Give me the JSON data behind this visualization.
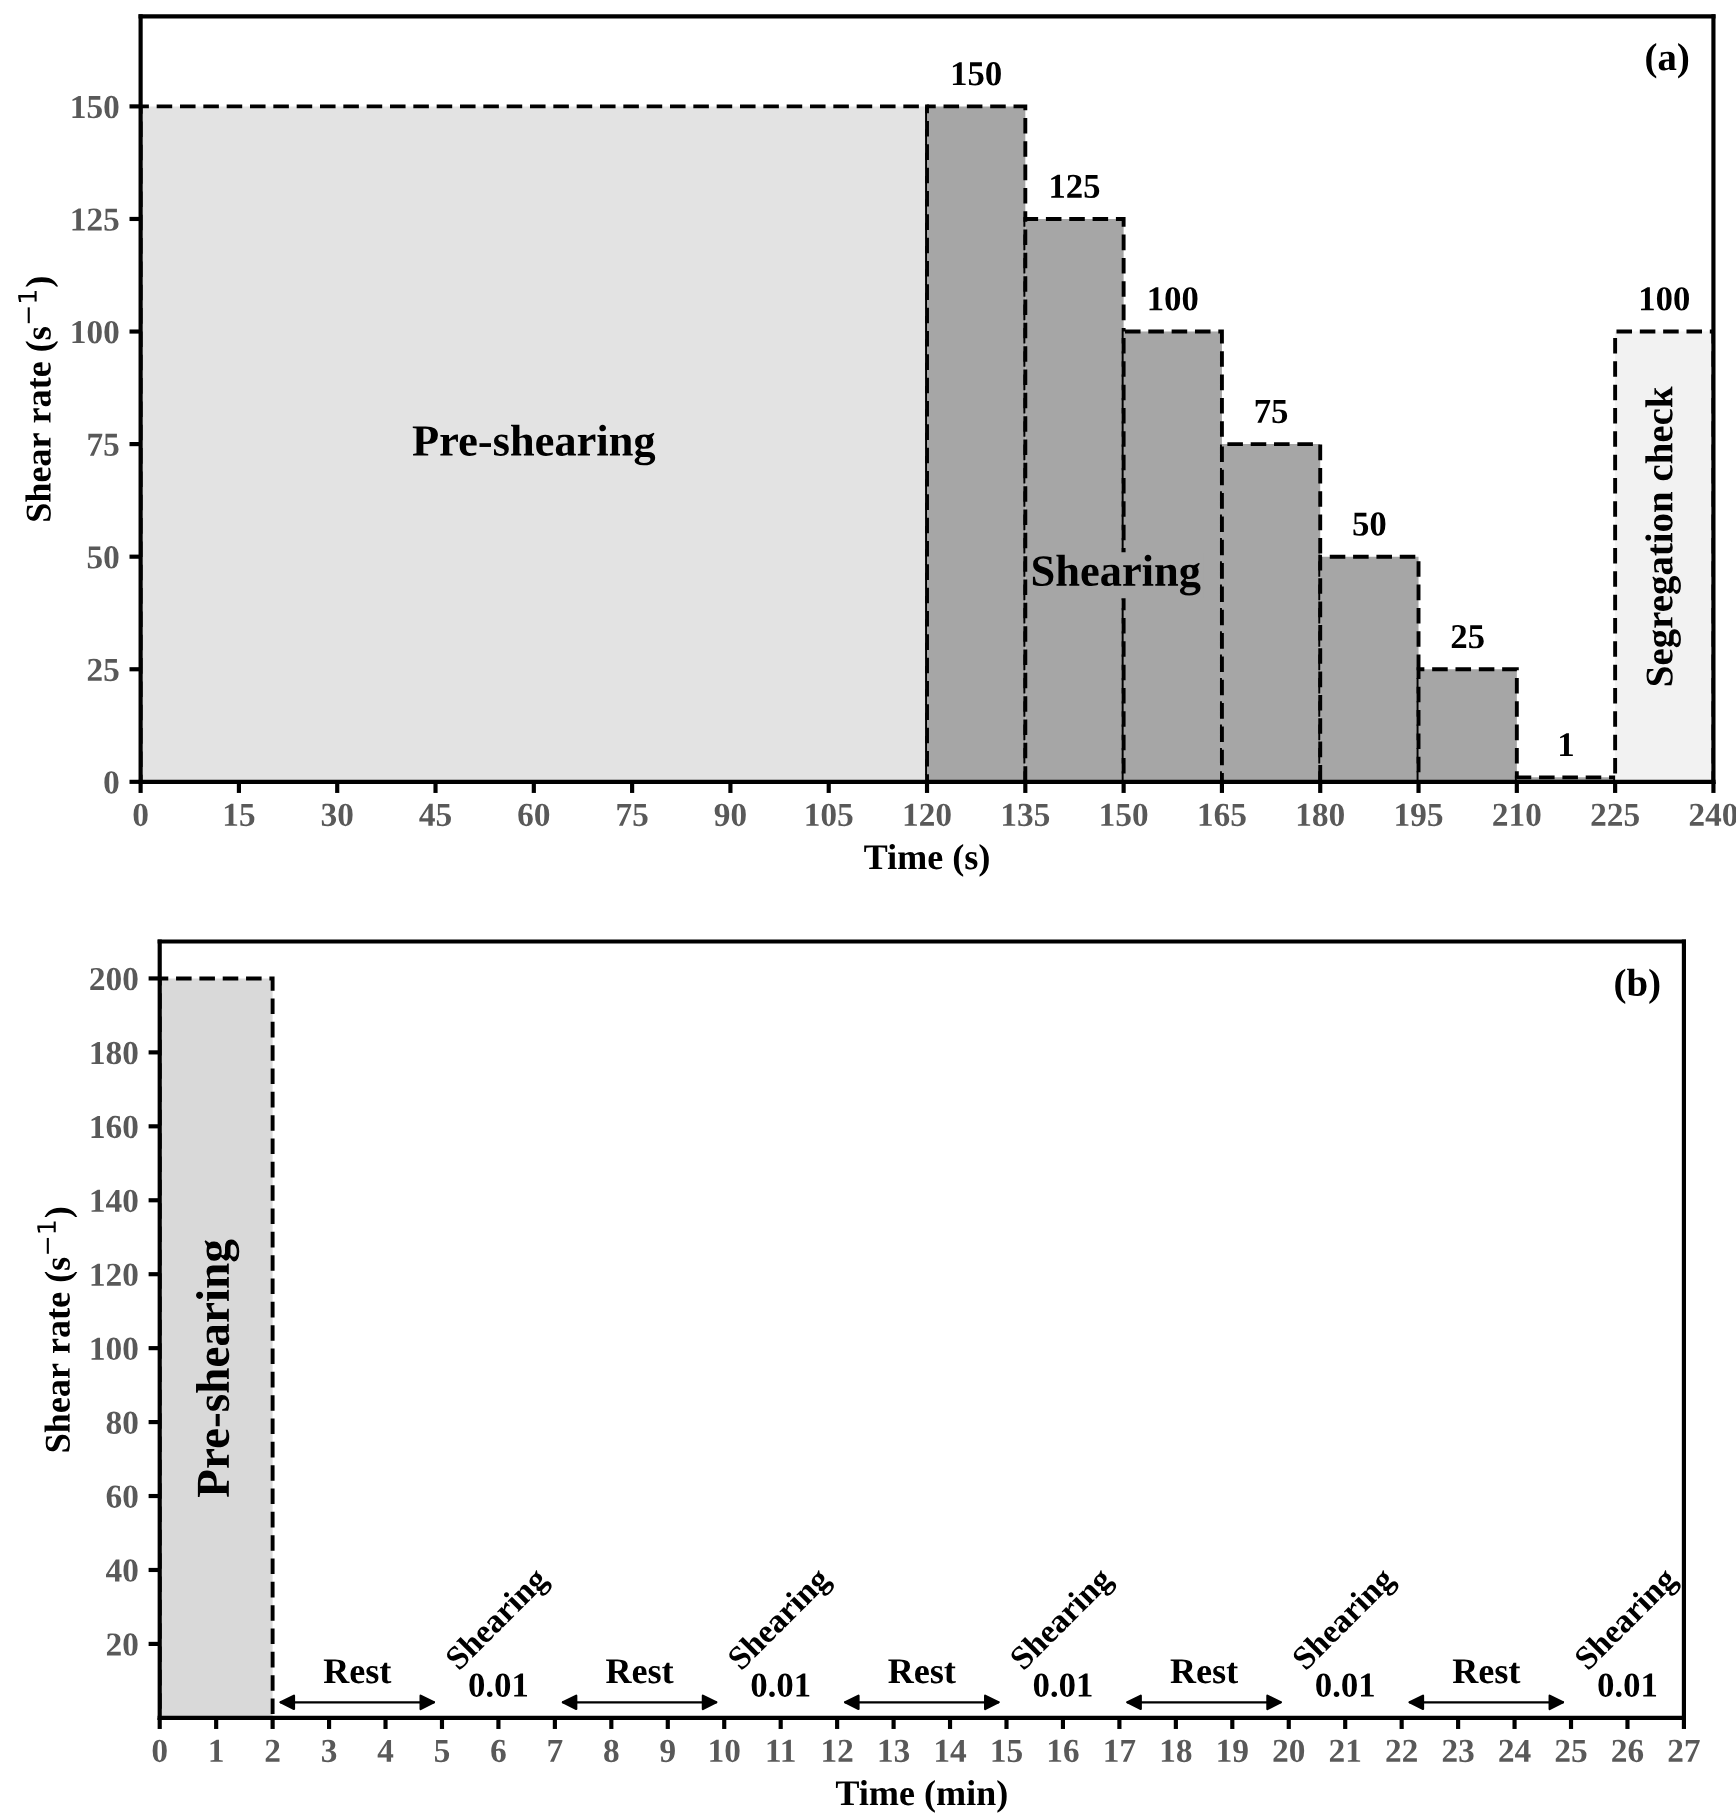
{
  "chart_data": [
    {
      "type": "histogram",
      "title": "(a)",
      "xlabel": "Time (s)",
      "ylabel": "Shear rate (s$^{−1}$)",
      "bins": [
        0,
        120,
        135,
        150,
        165,
        180,
        195,
        210,
        225,
        240
      ],
      "values": [
        150,
        150,
        125,
        100,
        75,
        50,
        25,
        1,
        100
      ],
      "colors": [
        "#e3e3e3",
        "#a6a6a6",
        "#a6a6a6",
        "#a6a6a6",
        "#a6a6a6",
        "#a6a6a6",
        "#a6a6a6",
        "#a6a6a6",
        "#f2f2f2"
      ],
      "value_labels": [
        null,
        "150",
        "125",
        "100",
        "75",
        "50",
        "25",
        "1",
        "100"
      ],
      "line_style": "dashed",
      "xlim": [
        0,
        240
      ],
      "xticks": [
        0,
        15,
        30,
        45,
        60,
        75,
        90,
        105,
        120,
        135,
        150,
        165,
        180,
        195,
        210,
        225,
        240
      ],
      "ylim": [
        0,
        170
      ],
      "yticks": [
        0,
        25,
        50,
        75,
        100,
        125,
        150
      ],
      "annotations": [
        "Pre-shearing",
        "Shearing",
        "Segregation check"
      ]
    },
    {
      "type": "histogram",
      "title": "(b)",
      "xlabel": "Time (min)",
      "ylabel": "Shear rate (s$^{−1}$)",
      "bins": [
        0,
        2,
        5,
        7,
        10,
        12,
        15,
        17,
        20,
        22,
        25,
        27
      ],
      "values": [
        200,
        0,
        0.01,
        0,
        0.01,
        0,
        0.01,
        0,
        0.01,
        0,
        0.01
      ],
      "colors": [
        "#d9d9d9",
        "#ffffff",
        "#808080",
        "#ffffff",
        "#808080",
        "#ffffff",
        "#808080",
        "#ffffff",
        "#808080",
        "#ffffff",
        "#808080"
      ],
      "value_labels": [
        null,
        null,
        "0.01",
        null,
        "0.01",
        null,
        "0.01",
        null,
        "0.01",
        null,
        "0.01"
      ],
      "line_style": "dashed",
      "xlim": [
        0,
        27
      ],
      "xticks": [
        0,
        1,
        2,
        3,
        4,
        5,
        6,
        7,
        8,
        9,
        10,
        11,
        12,
        13,
        14,
        15,
        16,
        17,
        18,
        19,
        20,
        21,
        22,
        23,
        24,
        25,
        26,
        27
      ],
      "ylim": [
        0,
        210
      ],
      "yticks": [
        20,
        40,
        60,
        80,
        100,
        120,
        140,
        160,
        180,
        200
      ],
      "annotations": [
        "Pre-shearing",
        "Rest",
        "Shearing",
        "Rest",
        "Shearing",
        "Rest",
        "Shearing",
        "Rest",
        "Shearing",
        "Rest",
        "Shearing"
      ]
    }
  ]
}
